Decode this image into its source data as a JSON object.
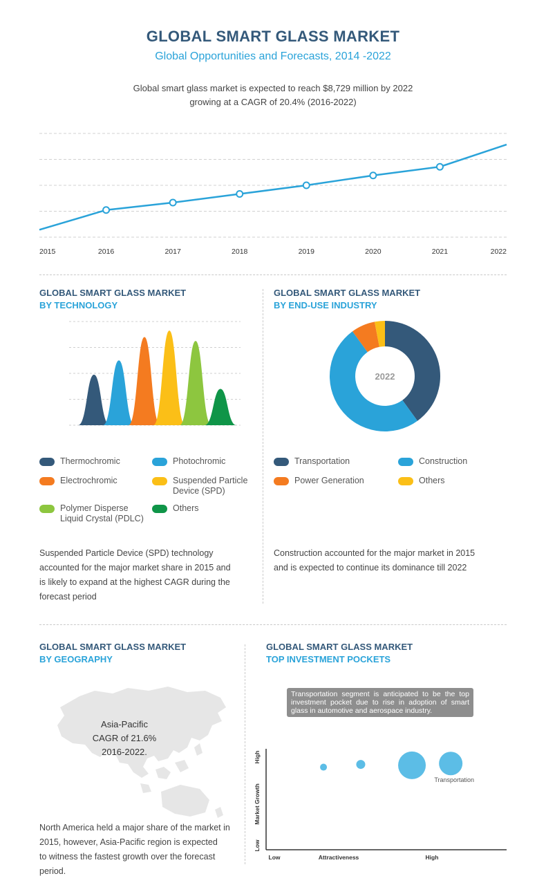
{
  "header": {
    "title": "GLOBAL SMART GLASS MARKET",
    "subtitle": "Global Opportunities and Forecasts, 2014 -2022",
    "intro_line1": "Global smart glass market is expected to reach $8,729 million by 2022",
    "intro_line2": "growing at a CAGR of 20.4% (2016-2022)"
  },
  "technology": {
    "title": "GLOBAL SMART GLASS MARKET",
    "subtitle": "BY TECHNOLOGY",
    "legend": [
      {
        "label1": "Thermochromic",
        "label2": ""
      },
      {
        "label1": "Photochromic",
        "label2": ""
      },
      {
        "label1": "Electrochromic",
        "label2": ""
      },
      {
        "label1": "Suspended Particle",
        "label2": "Device (SPD)"
      },
      {
        "label1": "Polymer Disperse",
        "label2": "Liquid Crystal (PDLC)"
      },
      {
        "label1": "Others",
        "label2": ""
      }
    ],
    "note_line1": "Suspended Particle Device (SPD)  technology",
    "note_line2": "accounted for the major market share in 2015 and",
    "note_line3": "is likely to expand at the highest CAGR during the",
    "note_line4": "forecast period"
  },
  "enduse": {
    "title": "GLOBAL SMART GLASS MARKET",
    "subtitle": "BY END-USE INDUSTRY",
    "legend": [
      {
        "label": "Transportation"
      },
      {
        "label": "Construction"
      },
      {
        "label": "Power Generation"
      },
      {
        "label": "Others"
      }
    ],
    "note_line1": "Construction accounted for the major market in 2015",
    "note_line2": "and is expected to continue its dominance till 2022"
  },
  "geography": {
    "title": "GLOBAL SMART GLASS MARKET",
    "subtitle": "BY GEOGRAPHY",
    "map_line1": "Asia-Pacific",
    "map_line2": "CAGR of 21.6%",
    "map_line3": "2016-2022.",
    "note_line1": "North America held a major share of the market in",
    "note_line2": "2015, however,  Asia-Pacific region is expected",
    "note_line3": "to witness the fastest growth over the forecast",
    "note_line4": "period."
  },
  "investment": {
    "title": "GLOBAL SMART GLASS MARKET",
    "subtitle": "TOP INVESTMENT POCKETS",
    "note": "Transportation segment is anticipated to be the top investment pocket due to rise in adoption of smart glass in automotive and aerospace industry."
  },
  "colors": {
    "dark_blue": "#34597a",
    "light_blue": "#2aa3d9",
    "orange": "#f47b20",
    "yellow": "#fbbf17",
    "green": "#8dc63f",
    "dark_green": "#0f9548",
    "bubble": "#5cbde6"
  },
  "chart_data": [
    {
      "type": "line",
      "title": "",
      "x": [
        "2015",
        "2016",
        "2017",
        "2018",
        "2019",
        "2020",
        "2021",
        "2022"
      ],
      "series": [
        {
          "values": [
            0.3,
            1.1,
            1.4,
            1.75,
            2.1,
            2.5,
            2.85,
            3.75
          ],
          "markers": [
            false,
            true,
            true,
            true,
            true,
            true,
            true,
            false
          ]
        }
      ],
      "ylim": [
        0,
        4.2
      ],
      "grid": true,
      "note": "y-axis unlabeled; values are relative trend levels"
    },
    {
      "type": "area",
      "title": "GLOBAL SMART GLASS MARKET BY TECHNOLOGY",
      "categories": [
        "Thermochromic",
        "Photochromic",
        "Electrochromic",
        "Suspended Particle Device (SPD)",
        "Polymer Disperse Liquid Crystal (PDLC)",
        "Others"
      ],
      "values": [
        1.95,
        2.5,
        3.4,
        3.65,
        3.25,
        1.4
      ],
      "ylim": [
        0,
        4
      ],
      "grid": true,
      "note": "peak heights relative; y-axis unlabeled"
    },
    {
      "type": "pie",
      "title": "GLOBAL SMART GLASS MARKET BY END-USE INDUSTRY",
      "center_label": "2022",
      "categories": [
        "Transportation",
        "Construction",
        "Power Generation",
        "Others"
      ],
      "values": [
        40,
        50,
        7,
        3
      ]
    },
    {
      "type": "scatter",
      "title": "TOP INVESTMENT POCKETS",
      "xlabel": "Attractiveness",
      "ylabel": "Market Growth",
      "x_ticks": [
        "Low",
        "Attractiveness",
        "High"
      ],
      "y_ticks": [
        "Low",
        "Market Growth",
        "High"
      ],
      "points": [
        {
          "x": 2.2,
          "y": 9.0,
          "size": 1,
          "label": ""
        },
        {
          "x": 4.6,
          "y": 9.3,
          "size": 1.3,
          "label": ""
        },
        {
          "x": 7.9,
          "y": 9.2,
          "size": 4,
          "label": ""
        },
        {
          "x": 10.4,
          "y": 9.4,
          "size": 3.4,
          "label": "Transportation"
        }
      ],
      "xlim": [
        -1.5,
        14
      ],
      "ylim": [
        0,
        11
      ]
    }
  ]
}
